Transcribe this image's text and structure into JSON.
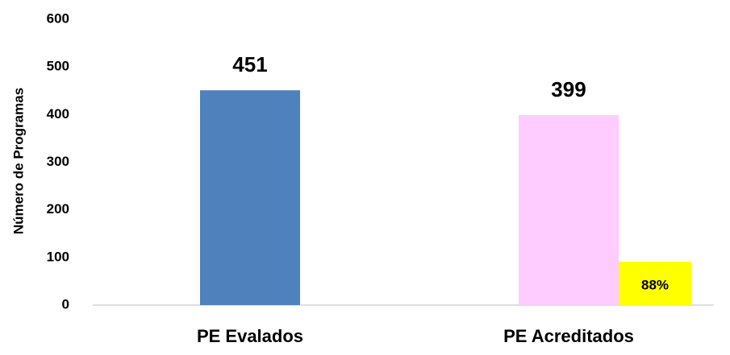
{
  "chart_data": {
    "type": "bar",
    "y_axis_label": "Número de Programas",
    "categories": [
      "PE Evalados",
      "PE Acreditados"
    ],
    "values": [
      451,
      399
    ],
    "colors": [
      "#4f81bd",
      "#ffccff"
    ],
    "ylim": [
      0,
      600
    ],
    "yticks": [
      0,
      100,
      200,
      300,
      400,
      500,
      600
    ],
    "grid": false,
    "annotation": {
      "text": "88%",
      "background": "#ffff00"
    }
  }
}
